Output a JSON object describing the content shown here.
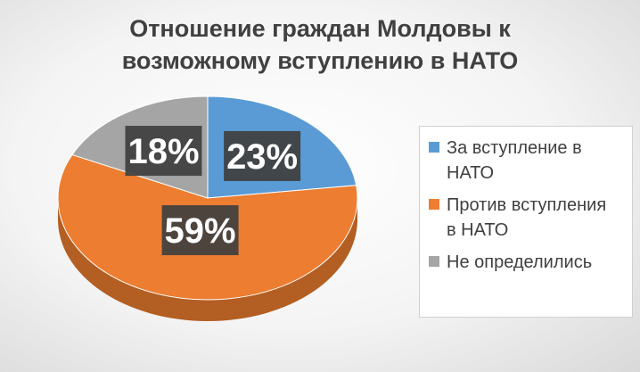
{
  "chart_data": {
    "type": "pie",
    "title_lines": [
      "Отношение граждан Молдовы к",
      "возможному вступлению в НАТО"
    ],
    "categories": [
      "За вступление в НАТО",
      "Против вступления в НАТО",
      "Не определились"
    ],
    "values": [
      23,
      59,
      18
    ],
    "data_labels": [
      "23%",
      "59%",
      "18%"
    ],
    "colors": [
      "#5b9bd5",
      "#ed7d31",
      "#a5a5a5"
    ],
    "side_colors": [
      "#3a6f9e",
      "#b35e22",
      "#7a7a7a"
    ],
    "legend_labels": [
      [
        "За вступление в",
        "НАТО"
      ],
      [
        "Против вступления",
        "в НАТО"
      ],
      [
        "Не определились"
      ]
    ],
    "legend_position": "right",
    "style": "3d"
  }
}
